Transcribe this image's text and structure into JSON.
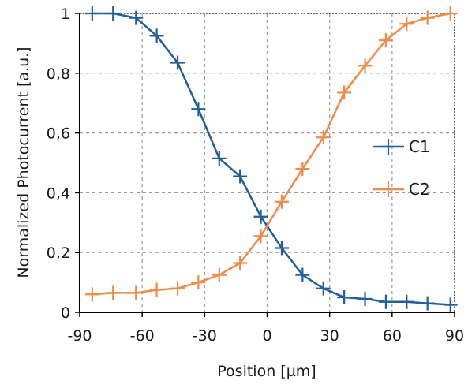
{
  "chart_data": {
    "type": "line",
    "xlabel": "Position [µm]",
    "ylabel": "Normalized Photocurrent [a.u.]",
    "xlim": [
      -90,
      90
    ],
    "ylim": [
      0,
      1
    ],
    "x_ticks": [
      "-90",
      "-60",
      "-30",
      "0",
      "30",
      "60",
      "90"
    ],
    "x_tick_values": [
      -90,
      -60,
      -30,
      0,
      30,
      60,
      90
    ],
    "y_ticks": [
      "0",
      "0,2",
      "0,4",
      "0,6",
      "0,8",
      "1"
    ],
    "y_tick_values": [
      0,
      0.2,
      0.4,
      0.6,
      0.8,
      1
    ],
    "grid": true,
    "legend_position": "right",
    "series": [
      {
        "name": "C1",
        "color": "#1f5f9e",
        "marker": "plus",
        "x": [
          -84,
          -74,
          -63,
          -53,
          -43,
          -33,
          -23,
          -13,
          -3,
          7,
          17,
          27,
          37,
          47,
          57,
          67,
          77,
          88
        ],
        "y": [
          1.0,
          1.0,
          0.985,
          0.925,
          0.835,
          0.68,
          0.515,
          0.455,
          0.32,
          0.215,
          0.125,
          0.08,
          0.05,
          0.045,
          0.035,
          0.035,
          0.03,
          0.025
        ]
      },
      {
        "name": "C2",
        "color": "#f08a45",
        "marker": "plus",
        "x": [
          -84,
          -74,
          -63,
          -53,
          -43,
          -33,
          -23,
          -13,
          -3,
          7,
          17,
          27,
          37,
          47,
          57,
          67,
          77,
          88
        ],
        "y": [
          0.06,
          0.065,
          0.065,
          0.075,
          0.08,
          0.1,
          0.125,
          0.165,
          0.255,
          0.37,
          0.48,
          0.585,
          0.735,
          0.825,
          0.91,
          0.965,
          0.985,
          1.0
        ]
      }
    ]
  }
}
